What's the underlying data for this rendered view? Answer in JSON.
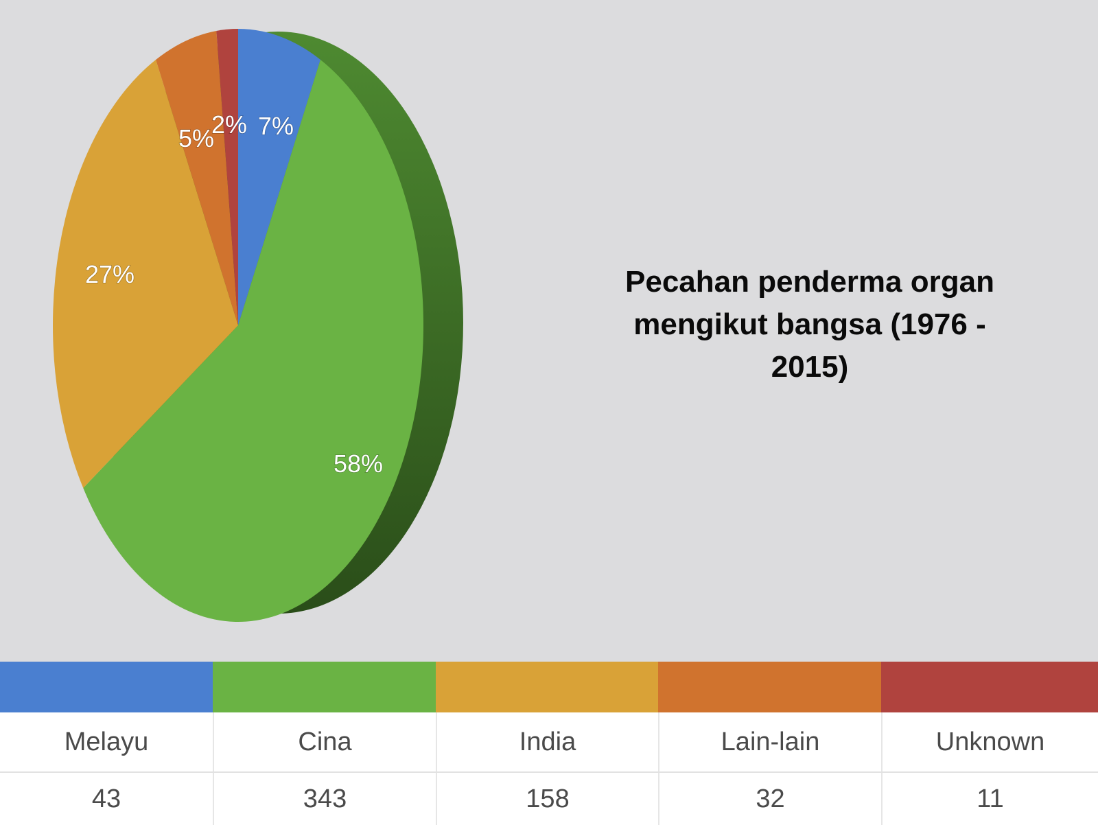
{
  "title": "Pecahan penderma organ mengikut bangsa (1976 - 2015)",
  "chart_data": {
    "type": "pie",
    "title": "Pecahan penderma organ mengikut bangsa (1976 - 2015)",
    "categories": [
      "Melayu",
      "Cina",
      "India",
      "Lain-lain",
      "Unknown"
    ],
    "values": [
      43,
      343,
      158,
      32,
      11
    ],
    "percent_labels": [
      "7%",
      "58%",
      "27%",
      "5%",
      "2%"
    ],
    "colors": [
      "#4a7fd0",
      "#6ab344",
      "#d9a237",
      "#d0732e",
      "#b0433e"
    ],
    "side_color": "#3c6b25",
    "legend_position": "bottom-table"
  }
}
